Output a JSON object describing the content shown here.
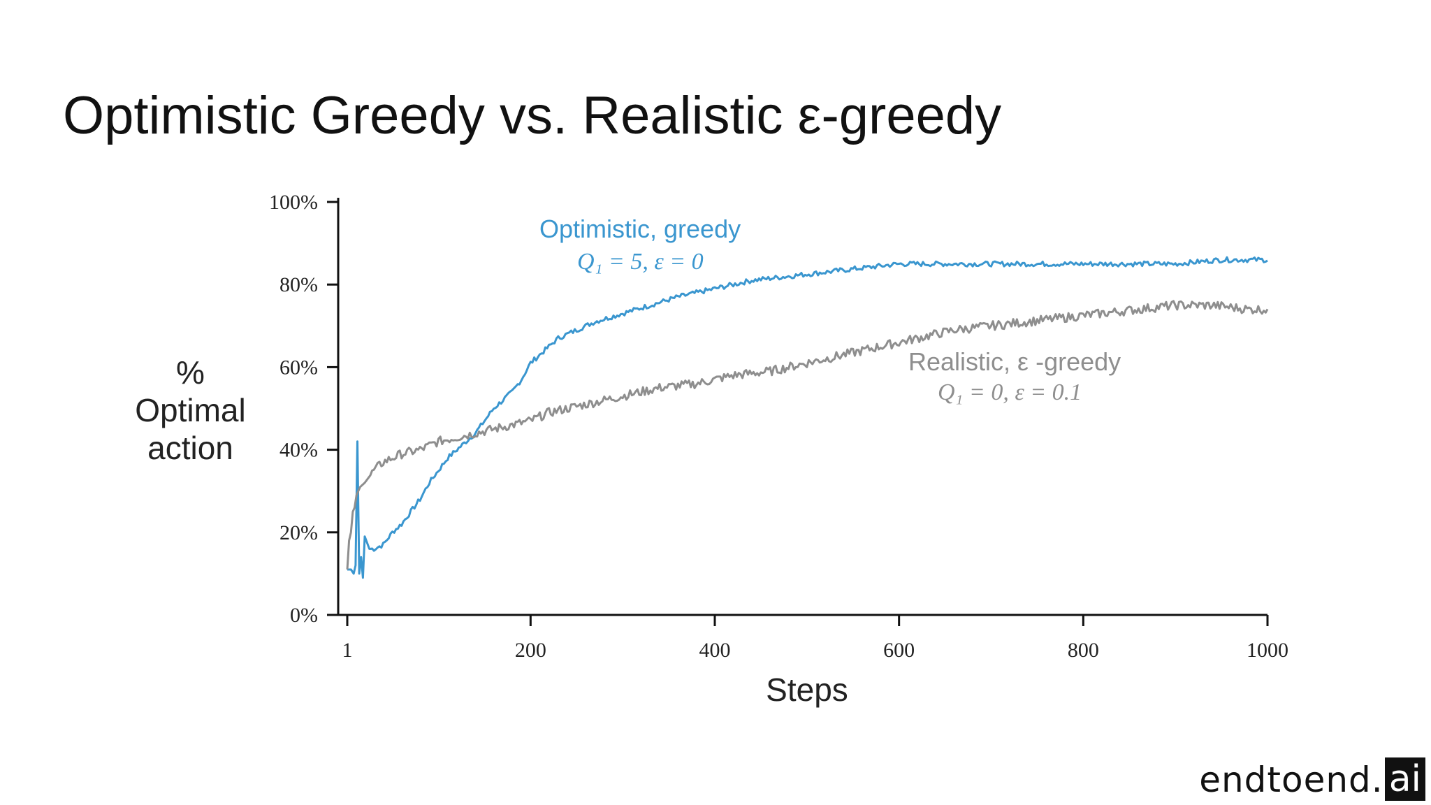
{
  "slide": {
    "title": "Optimistic Greedy vs. Realistic ε-greedy"
  },
  "brand": {
    "text": "endtoend.",
    "box_text": "ai"
  },
  "colors": {
    "optimistic": "#3a96cf",
    "realistic": "#8e8e8e",
    "axis": "#111111",
    "text": "#222222"
  },
  "chart_data": {
    "type": "line",
    "title": "",
    "xlabel": "Steps",
    "ylabel_lines": [
      "%",
      "Optimal",
      "action"
    ],
    "xlim": [
      1,
      1000
    ],
    "ylim": [
      0,
      100
    ],
    "x_ticks": [
      1,
      200,
      400,
      600,
      800,
      1000
    ],
    "x_tick_labels": [
      "1",
      "200",
      "400",
      "600",
      "800",
      "1000"
    ],
    "y_ticks": [
      0,
      20,
      40,
      60,
      80,
      100
    ],
    "y_tick_labels": [
      "0%",
      "20%",
      "40%",
      "60%",
      "80%",
      "100%"
    ],
    "grid": false,
    "series": [
      {
        "name": "Optimistic, greedy",
        "params": "Q₁ = 5,  ε = 0",
        "color": "#3a96cf",
        "x": [
          1,
          5,
          8,
          10,
          12,
          14,
          16,
          18,
          20,
          25,
          30,
          40,
          50,
          60,
          70,
          80,
          90,
          100,
          110,
          120,
          130,
          140,
          150,
          160,
          170,
          180,
          190,
          200,
          210,
          220,
          230,
          240,
          250,
          270,
          300,
          330,
          360,
          400,
          440,
          480,
          520,
          560,
          600,
          650,
          700,
          750,
          800,
          850,
          900,
          950,
          1000
        ],
        "values": [
          11,
          11,
          10,
          12,
          42,
          10,
          14,
          9,
          19,
          16,
          16,
          17,
          20,
          22,
          25,
          28,
          32,
          35,
          38,
          40,
          42,
          44,
          47,
          50,
          52,
          54,
          57,
          61,
          63,
          65,
          67,
          68,
          69,
          71,
          73,
          75,
          77,
          79,
          81,
          82,
          83,
          84,
          85,
          85,
          85,
          85,
          85,
          85,
          85,
          86,
          86
        ]
      },
      {
        "name": "Realistic, ε-greedy",
        "params": "Q₁ = 0,  ε = 0.1",
        "color": "#8e8e8e",
        "x": [
          1,
          3,
          5,
          7,
          9,
          11,
          13,
          15,
          20,
          30,
          40,
          50,
          60,
          80,
          100,
          120,
          140,
          160,
          180,
          200,
          220,
          240,
          260,
          300,
          340,
          380,
          420,
          460,
          500,
          540,
          580,
          620,
          660,
          700,
          740,
          780,
          820,
          860,
          900,
          940,
          980,
          1000
        ],
        "values": [
          11,
          18,
          20,
          25,
          26,
          29,
          30,
          31,
          32,
          35,
          37,
          38,
          39,
          40,
          42,
          43,
          44,
          45,
          46,
          47,
          49,
          50,
          51,
          53,
          55,
          56,
          58,
          59,
          61,
          63,
          65,
          67,
          69,
          70,
          71,
          72,
          73,
          74,
          75,
          75,
          74,
          74
        ]
      }
    ],
    "annotations": [
      {
        "series": 0,
        "label": "Optimistic, greedy",
        "params": "Q₁ = 5,  ε = 0"
      },
      {
        "series": 1,
        "label": "Realistic, ε -greedy",
        "params": "Q₁ = 0,  ε = 0.1"
      }
    ]
  }
}
